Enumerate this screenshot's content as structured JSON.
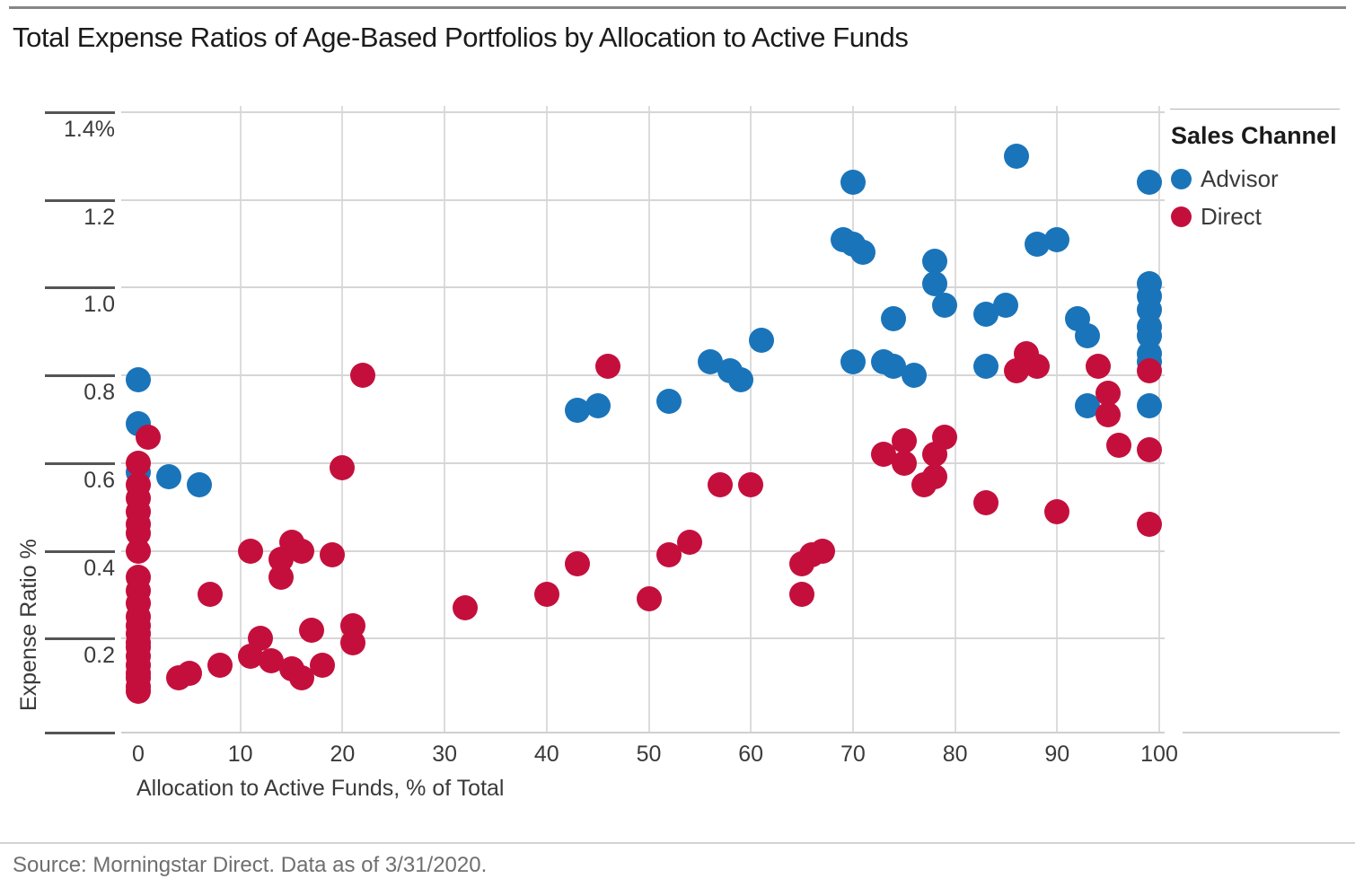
{
  "title": "Total Expense Ratios of Age-Based Portfolios by Allocation to Active Funds",
  "source_note": "Source: Morningstar Direct. Data as of 3/31/2020.",
  "legend": {
    "title": "Sales Channel",
    "entries": [
      {
        "label": "Advisor",
        "color": "#1a74ba"
      },
      {
        "label": "Direct",
        "color": "#c40f3c"
      }
    ]
  },
  "colors": {
    "advisor": "#1a74ba",
    "direct": "#c40f3c",
    "gridline": "#d6d6d6",
    "axis_line": "#cfcfcf",
    "tick_mark": "#555555",
    "background": "#ffffff"
  },
  "chart_data": {
    "type": "scatter",
    "title": "Total Expense Ratios of Age-Based Portfolios by Allocation to Active Funds",
    "xlabel": "Allocation to Active Funds, % of Total",
    "ylabel": "Expense Ratio %",
    "xlim": [
      0,
      100
    ],
    "ylim": [
      0,
      1.45
    ],
    "x_ticks": [
      0,
      10,
      20,
      30,
      40,
      50,
      60,
      70,
      80,
      90,
      100
    ],
    "y_ticks": [
      {
        "value": 1.4,
        "label": "1.4%"
      },
      {
        "value": 1.2,
        "label": "1.2"
      },
      {
        "value": 1.0,
        "label": "1.0"
      },
      {
        "value": 0.8,
        "label": "0.8"
      },
      {
        "value": 0.6,
        "label": "0.6"
      },
      {
        "value": 0.4,
        "label": "0.4"
      },
      {
        "value": 0.2,
        "label": "0.2"
      }
    ],
    "grid": true,
    "legend_position": "top-right",
    "series": [
      {
        "name": "Advisor",
        "color": "#1a74ba",
        "points": [
          [
            0,
            0.79
          ],
          [
            0,
            0.69
          ],
          [
            0,
            0.58
          ],
          [
            3,
            0.57
          ],
          [
            6,
            0.55
          ],
          [
            43,
            0.72
          ],
          [
            45,
            0.73
          ],
          [
            52,
            0.74
          ],
          [
            56,
            0.83
          ],
          [
            58,
            0.81
          ],
          [
            59,
            0.79
          ],
          [
            61,
            0.88
          ],
          [
            69,
            1.11
          ],
          [
            70,
            1.24
          ],
          [
            70,
            1.1
          ],
          [
            71,
            1.08
          ],
          [
            70,
            0.83
          ],
          [
            73,
            0.83
          ],
          [
            74,
            0.82
          ],
          [
            74,
            0.93
          ],
          [
            76,
            0.8
          ],
          [
            78,
            1.06
          ],
          [
            78,
            1.01
          ],
          [
            79,
            0.96
          ],
          [
            83,
            0.94
          ],
          [
            85,
            0.96
          ],
          [
            83,
            0.82
          ],
          [
            86,
            1.3
          ],
          [
            88,
            1.1
          ],
          [
            90,
            1.11
          ],
          [
            92,
            0.93
          ],
          [
            93,
            0.89
          ],
          [
            93,
            0.73
          ],
          [
            99,
            1.24
          ],
          [
            99,
            1.01
          ],
          [
            99,
            0.98
          ],
          [
            99,
            0.95
          ],
          [
            99,
            0.91
          ],
          [
            99,
            0.89
          ],
          [
            99,
            0.85
          ],
          [
            99,
            0.83
          ],
          [
            99,
            0.73
          ]
        ]
      },
      {
        "name": "Direct",
        "color": "#c40f3c",
        "points": [
          [
            1,
            0.66
          ],
          [
            0,
            0.6
          ],
          [
            0,
            0.55
          ],
          [
            0,
            0.52
          ],
          [
            0,
            0.49
          ],
          [
            0,
            0.46
          ],
          [
            0,
            0.44
          ],
          [
            0,
            0.4
          ],
          [
            0,
            0.34
          ],
          [
            0,
            0.31
          ],
          [
            0,
            0.28
          ],
          [
            0,
            0.25
          ],
          [
            0,
            0.23
          ],
          [
            0,
            0.21
          ],
          [
            0,
            0.19
          ],
          [
            0,
            0.18
          ],
          [
            0,
            0.16
          ],
          [
            0,
            0.14
          ],
          [
            0,
            0.12
          ],
          [
            0,
            0.11
          ],
          [
            0,
            0.09
          ],
          [
            0,
            0.08
          ],
          [
            4,
            0.11
          ],
          [
            5,
            0.12
          ],
          [
            8,
            0.14
          ],
          [
            7,
            0.3
          ],
          [
            11,
            0.4
          ],
          [
            11,
            0.16
          ],
          [
            12,
            0.2
          ],
          [
            13,
            0.15
          ],
          [
            14,
            0.38
          ],
          [
            14,
            0.34
          ],
          [
            15,
            0.42
          ],
          [
            15,
            0.13
          ],
          [
            16,
            0.4
          ],
          [
            16,
            0.11
          ],
          [
            17,
            0.22
          ],
          [
            18,
            0.14
          ],
          [
            19,
            0.39
          ],
          [
            20,
            0.59
          ],
          [
            21,
            0.23
          ],
          [
            21,
            0.19
          ],
          [
            22,
            0.8
          ],
          [
            32,
            0.27
          ],
          [
            40,
            0.3
          ],
          [
            43,
            0.37
          ],
          [
            46,
            0.82
          ],
          [
            50,
            0.29
          ],
          [
            52,
            0.39
          ],
          [
            54,
            0.42
          ],
          [
            57,
            0.55
          ],
          [
            60,
            0.55
          ],
          [
            65,
            0.37
          ],
          [
            66,
            0.39
          ],
          [
            67,
            0.4
          ],
          [
            65,
            0.3
          ],
          [
            73,
            0.62
          ],
          [
            75,
            0.65
          ],
          [
            75,
            0.6
          ],
          [
            77,
            0.55
          ],
          [
            78,
            0.57
          ],
          [
            78,
            0.62
          ],
          [
            79,
            0.66
          ],
          [
            83,
            0.51
          ],
          [
            86,
            0.81
          ],
          [
            87,
            0.85
          ],
          [
            88,
            0.82
          ],
          [
            90,
            0.49
          ],
          [
            94,
            0.82
          ],
          [
            95,
            0.76
          ],
          [
            95,
            0.71
          ],
          [
            96,
            0.64
          ],
          [
            99,
            0.81
          ],
          [
            99,
            0.63
          ],
          [
            99,
            0.46
          ]
        ]
      }
    ]
  }
}
